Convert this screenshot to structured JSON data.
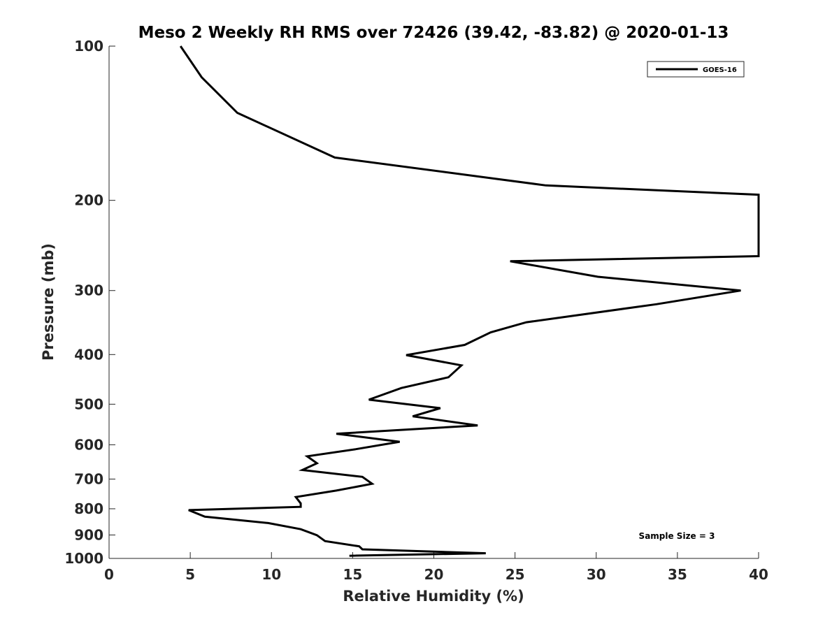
{
  "chart_data": {
    "type": "line",
    "title": "Meso 2 Weekly RH RMS over 72426 (39.42, -83.82) @ 2020-01-13",
    "xlabel": "Relative Humidity (%)",
    "ylabel": "Pressure (mb)",
    "xlim": [
      0,
      40
    ],
    "ylim": [
      100,
      1000
    ],
    "y_scale": "log",
    "y_reversed": true,
    "x_ticks": [
      0,
      5,
      10,
      15,
      20,
      25,
      30,
      35,
      40
    ],
    "y_ticks": [
      100,
      200,
      300,
      400,
      500,
      600,
      700,
      800,
      900,
      1000
    ],
    "grid": false,
    "legend_position": "top-right",
    "annotation": "Sample Size = 3",
    "series": [
      {
        "name": "GOES-16",
        "color": "#000000",
        "points": [
          [
            4.4,
            100
          ],
          [
            5.7,
            115
          ],
          [
            7.9,
            135
          ],
          [
            13.9,
            165
          ],
          [
            26.9,
            187
          ],
          [
            40.0,
            195
          ],
          [
            40.0,
            257
          ],
          [
            24.7,
            263
          ],
          [
            30.1,
            282
          ],
          [
            38.9,
            300
          ],
          [
            33.7,
            319
          ],
          [
            25.7,
            346
          ],
          [
            23.5,
            362
          ],
          [
            21.9,
            383
          ],
          [
            18.3,
            401
          ],
          [
            21.7,
            420
          ],
          [
            20.9,
            443
          ],
          [
            18.0,
            465
          ],
          [
            16.0,
            490
          ],
          [
            20.4,
            509
          ],
          [
            18.7,
            528
          ],
          [
            22.7,
            550
          ],
          [
            14.0,
            571
          ],
          [
            17.9,
            592
          ],
          [
            15.2,
            612
          ],
          [
            12.2,
            632
          ],
          [
            12.8,
            652
          ],
          [
            11.9,
            672
          ],
          [
            15.6,
            693
          ],
          [
            16.2,
            715
          ],
          [
            14.0,
            737
          ],
          [
            11.5,
            759
          ],
          [
            11.8,
            781
          ],
          [
            11.8,
            793
          ],
          [
            4.9,
            805
          ],
          [
            5.9,
            829
          ],
          [
            9.8,
            853
          ],
          [
            11.8,
            877
          ],
          [
            12.8,
            901
          ],
          [
            13.3,
            925
          ],
          [
            15.4,
            947
          ],
          [
            15.6,
            960
          ],
          [
            23.2,
            977
          ],
          [
            14.8,
            988
          ]
        ]
      }
    ]
  }
}
